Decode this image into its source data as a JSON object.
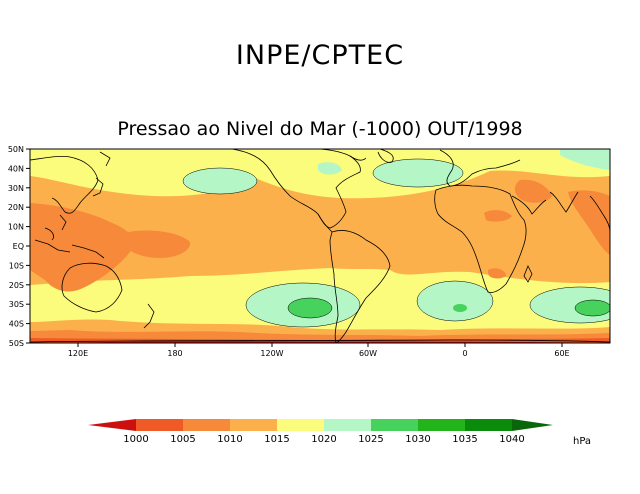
{
  "header": "INPE/CPTEC",
  "title": "Pressao ao Nivel do Mar (-1000) OUT/1998",
  "lat_labels": [
    "50N",
    "40N",
    "30N",
    "20N",
    "10N",
    "EQ",
    "10S",
    "20S",
    "30S",
    "40S",
    "50S"
  ],
  "lon_labels": [
    "120E",
    "180",
    "120W",
    "60W",
    "0",
    "60E"
  ],
  "colorbar": {
    "unit": "hPa",
    "levels": [
      "1000",
      "1005",
      "1010",
      "1015",
      "1020",
      "1025",
      "1030",
      "1035",
      "1040"
    ],
    "colors": [
      "#cc1010",
      "#ef5a26",
      "#f6893a",
      "#fbb04c",
      "#fbfb7c",
      "#b4f6c6",
      "#46d25c",
      "#23b41c",
      "#0b8b0b",
      "#0a660a"
    ]
  }
}
